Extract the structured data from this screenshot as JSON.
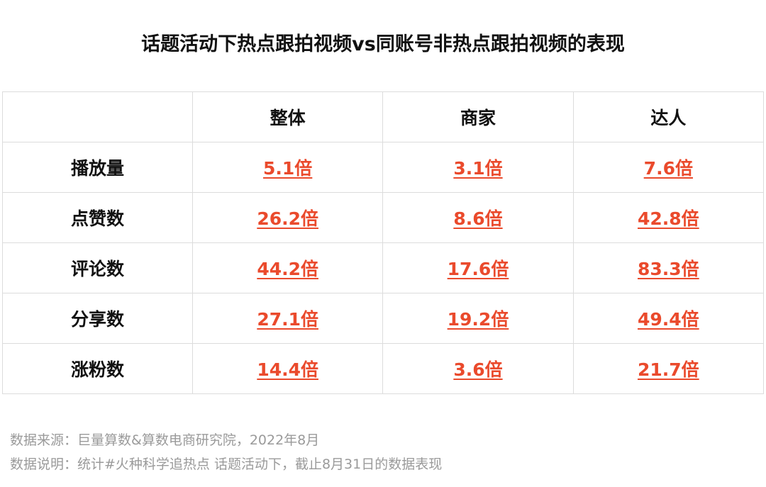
{
  "title": "话题活动下热点跟拍视频vs同账号非热点跟拍视频的表现",
  "table": {
    "columns": [
      "整体",
      "商家",
      "达人"
    ],
    "rows": [
      {
        "label": "播放量",
        "cells": [
          "5.1倍",
          "3.1倍",
          "7.6倍"
        ]
      },
      {
        "label": "点赞数",
        "cells": [
          "26.2倍",
          "8.6倍",
          "42.8倍"
        ]
      },
      {
        "label": "评论数",
        "cells": [
          "44.2倍",
          "17.6倍",
          "83.3倍"
        ]
      },
      {
        "label": "分享数",
        "cells": [
          "27.1倍",
          "19.2倍",
          "49.4倍"
        ]
      },
      {
        "label": "涨粉数",
        "cells": [
          "14.4倍",
          "3.6倍",
          "21.7倍"
        ]
      }
    ]
  },
  "notes": [
    "数据来源：巨量算数&算数电商研究院，2022年8月",
    "数据说明：统计#火种科学追热点 话题活动下，截止8月31日的数据表现"
  ]
}
